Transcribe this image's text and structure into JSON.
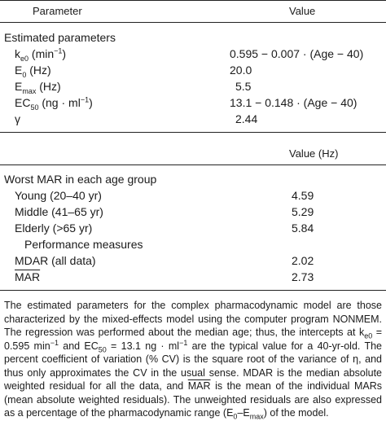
{
  "table1": {
    "col_param": "Parameter",
    "col_value": "Value",
    "section": "Estimated parameters",
    "rows": [
      {
        "base": "k",
        "sub": "e0",
        "unit": " (min",
        "sup": "−1",
        "tail": ")",
        "value": "0.595  −  0.007 · (Age  −  40)"
      },
      {
        "base": "E",
        "sub": "0",
        "unit": " (Hz)",
        "sup": "",
        "tail": "",
        "value": "20.0"
      },
      {
        "base": "E",
        "sub": "max",
        "unit": " (Hz)",
        "sup": "",
        "tail": "",
        "value": "5.5"
      },
      {
        "base": "EC",
        "sub": "50",
        "unit": " (ng · ml",
        "sup": "−1",
        "tail": ")",
        "value": "13.1  −  0.148 · (Age  −  40)"
      },
      {
        "base": "γ",
        "sub": "",
        "unit": "",
        "sup": "",
        "tail": "",
        "value": "2.44"
      }
    ]
  },
  "table2": {
    "col_value": "Value (Hz)",
    "section": "Worst MAR in each age group",
    "groups": [
      {
        "label": "Young (20–40 yr)",
        "value": "4.59"
      },
      {
        "label": "Middle (41–65 yr)",
        "value": "5.29"
      },
      {
        "label": "Elderly (>65 yr)",
        "value": "5.84"
      }
    ],
    "subsection": "Performance measures",
    "measures": [
      {
        "label": "MDAR (all data)",
        "value": "2.02"
      },
      {
        "label": "MAR",
        "value": "2.73"
      }
    ]
  },
  "footnote": {
    "p1": "The estimated parameters for the complex pharmacodynamic model are those characterized by the mixed-effects model using the computer program NONMEM. The regression was performed about the median age; thus, the intercepts at k",
    "p1_sub1": "e0",
    "p1_b": " = 0.595 min",
    "p1_sup1": "−1",
    "p1_c": " and EC",
    "p1_sub2": "50",
    "p1_d": " = 13.1 ng · ml",
    "p1_sup2": "−1",
    "p1_e": " are the typical value for a 40-yr-old. The percent coefficient of variation (% CV) is the square root of the variance of η, and thus only approximates the CV in the usual sense. MDAR is the median absolute weighted residual for all the data, and ",
    "p1_mar": "MAR",
    "p1_f": " is the mean of the individual MARs (mean absolute weighted residuals). The unweighted residuals are also expressed as a percentage of the pharmacodynamic range (E",
    "p1_sub3": "0",
    "p1_g": "–E",
    "p1_sub4": "max",
    "p1_h": ") of the model."
  }
}
